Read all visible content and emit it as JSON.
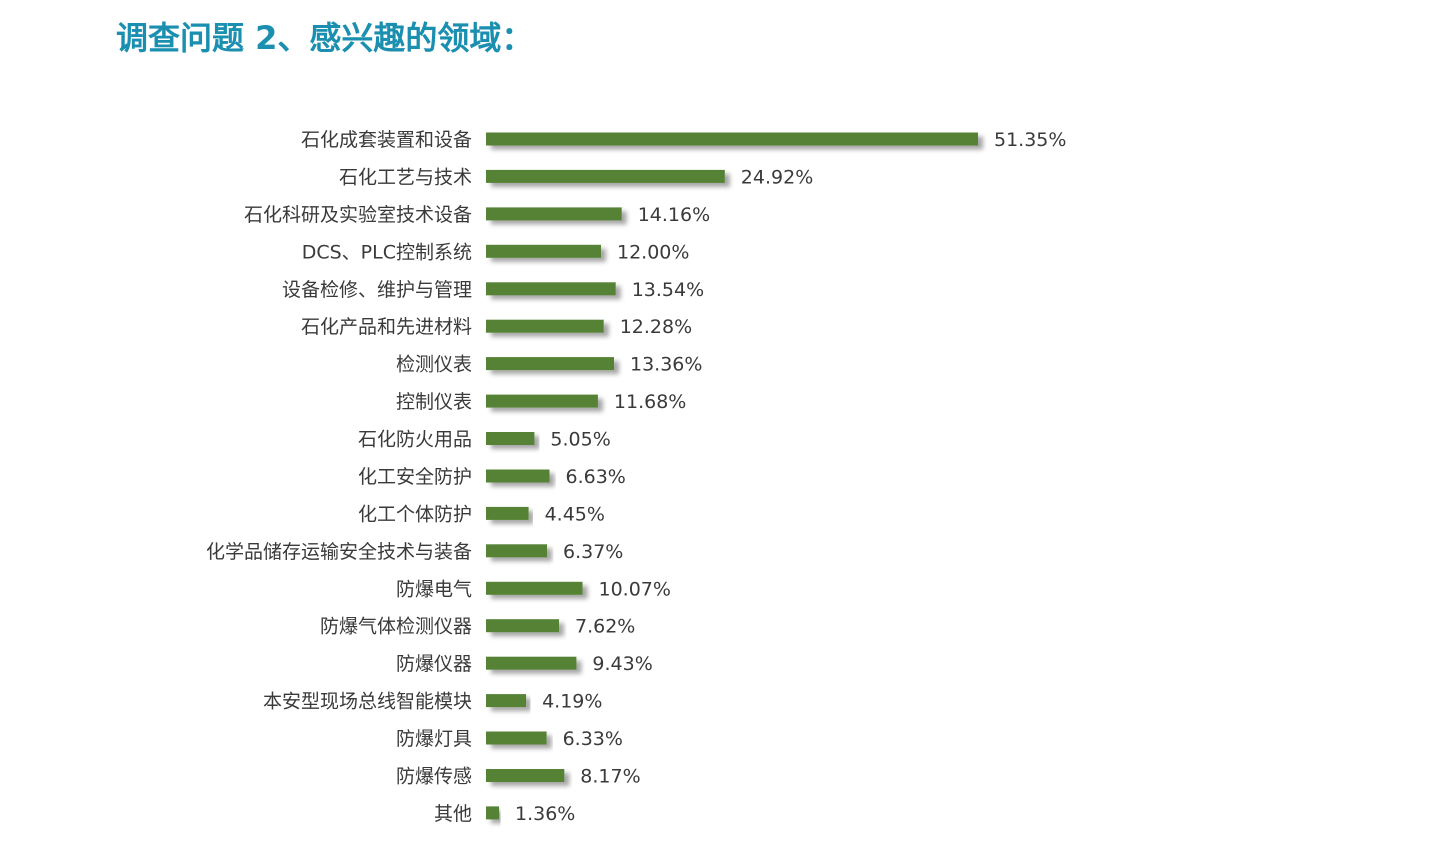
{
  "page": {
    "title": "调查问题 2、感兴趣的领域：",
    "title_color": "#1a8fb0"
  },
  "chart_data": {
    "type": "bar",
    "orientation": "horizontal",
    "title": "",
    "xlabel": "",
    "ylabel": "",
    "grid": false,
    "legend": "none",
    "bar_color": "#548235",
    "value_format": "percent",
    "xlim": [
      0,
      0.5135
    ],
    "categories": [
      "石化成套装置和设备",
      "石化工艺与技术",
      "石化科研及实验室技术设备",
      "DCS、PLC控制系统",
      "设备检修、维护与管理",
      "石化产品和先进材料",
      "检测仪表",
      "控制仪表",
      "石化防火用品",
      "化工安全防护",
      "化工个体防护",
      "化学品储存运输安全技术与装备",
      "防爆电气",
      "防爆气体检测仪器",
      "防爆仪器",
      "本安型现场总线智能模块",
      "防爆灯具",
      "防爆传感",
      "其他"
    ],
    "values": [
      0.5135,
      0.2492,
      0.1416,
      0.12,
      0.1354,
      0.1228,
      0.1336,
      0.1168,
      0.0505,
      0.0663,
      0.0445,
      0.0637,
      0.1007,
      0.0762,
      0.0943,
      0.0419,
      0.0633,
      0.0817,
      0.0136
    ],
    "value_labels": [
      "51.35%",
      "24.92%",
      "14.16%",
      "12.00%",
      "13.54%",
      "12.28%",
      "13.36%",
      "11.68%",
      "5.05%",
      "6.63%",
      "4.45%",
      "6.37%",
      "10.07%",
      "7.62%",
      "9.43%",
      "4.19%",
      "6.33%",
      "8.17%",
      "1.36%"
    ]
  }
}
